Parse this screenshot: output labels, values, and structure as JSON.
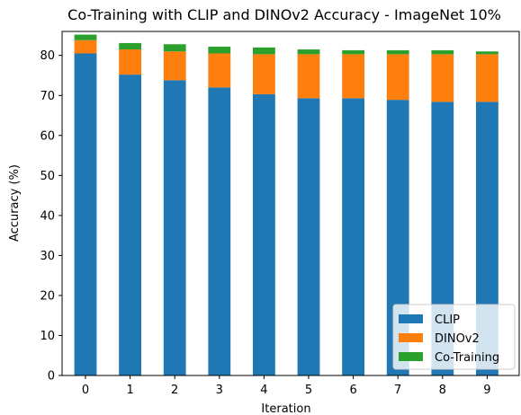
{
  "chart_data": {
    "type": "bar",
    "stacked": true,
    "title": "Co-Training with CLIP and DINOv2 Accuracy - ImageNet 10%",
    "xlabel": "Iteration",
    "ylabel": "Accuracy (%)",
    "categories": [
      "0",
      "1",
      "2",
      "3",
      "4",
      "5",
      "6",
      "7",
      "8",
      "9"
    ],
    "ylim": [
      0,
      86
    ],
    "yticks": [
      0,
      10,
      20,
      30,
      40,
      50,
      60,
      70,
      80
    ],
    "legend_position": "bottom-right",
    "grid": false,
    "series": [
      {
        "name": "CLIP",
        "color": "#1f77b4",
        "values": [
          80.5,
          75.2,
          73.8,
          72.0,
          70.3,
          69.3,
          69.3,
          68.9,
          68.4,
          68.4
        ]
      },
      {
        "name": "DINOv2",
        "color": "#ff7f0e",
        "values": [
          3.3,
          6.3,
          7.2,
          8.5,
          10.0,
          11.0,
          11.0,
          11.4,
          11.9,
          11.9
        ]
      },
      {
        "name": "Co-Training",
        "color": "#2ca02c",
        "values": [
          1.4,
          1.6,
          1.8,
          1.7,
          1.7,
          1.2,
          1.0,
          1.0,
          1.0,
          0.7
        ]
      }
    ]
  }
}
